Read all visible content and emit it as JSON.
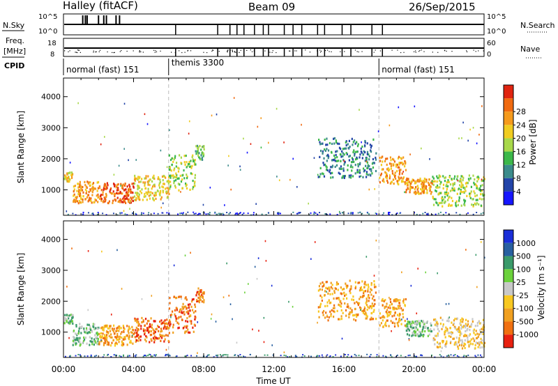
{
  "header": {
    "site": "Halley (fitACF)",
    "beam": "Beam 09",
    "date": "26/Sep/2015"
  },
  "status_panels": {
    "nsky": {
      "label": "N.Sky",
      "ticks": [
        "10^5",
        "10^0"
      ]
    },
    "nsearch": {
      "label": "N.Search",
      "ticks": [
        "10^5",
        "10^0"
      ]
    },
    "freq": {
      "label_top": "Freq.",
      "label_unit": "[MHz]",
      "ticks": [
        "18",
        "8"
      ]
    },
    "nave": {
      "label": "Nave",
      "ticks": [
        "60",
        "0"
      ]
    },
    "cpid": {
      "label": "CPID",
      "segments": [
        {
          "name": "normal (fast) 151",
          "start_hour": 0,
          "end_hour": 6
        },
        {
          "name": "themis 3300",
          "start_hour": 6,
          "end_hour": 18
        },
        {
          "name": "normal (fast) 151",
          "start_hour": 18,
          "end_hour": 24
        }
      ]
    }
  },
  "chart_data": [
    {
      "type": "heatmap",
      "title": "",
      "xlabel": "Time UT",
      "ylabel": "Slant Range [km]",
      "xlim": [
        0,
        24
      ],
      "ylim": [
        180,
        4600
      ],
      "x_ticks": [
        "00:00",
        "04:00",
        "08:00",
        "12:00",
        "16:00",
        "20:00",
        "00:00"
      ],
      "y_ticks": [
        "1000",
        "2000",
        "3000",
        "4000"
      ],
      "colorbar": {
        "label": "Power [dB]",
        "ticks": [
          "4",
          "8",
          "12",
          "16",
          "20",
          "24",
          "28"
        ],
        "colors": [
          "#1616ff",
          "#2244a8",
          "#3b8b8b",
          "#3cb84a",
          "#a8d84a",
          "#f0cc20",
          "#f59a1c",
          "#f06a10",
          "#e02410"
        ]
      },
      "dashed_lines_hour": [
        6,
        18
      ],
      "bands": [
        {
          "t0": 0.0,
          "t1": 0.5,
          "r0": 1300,
          "r1": 1600,
          "level": 5
        },
        {
          "t0": 0.5,
          "t1": 2.0,
          "r0": 600,
          "r1": 1300,
          "level": 6
        },
        {
          "t0": 2.0,
          "t1": 4.0,
          "r0": 600,
          "r1": 1250,
          "level": 7
        },
        {
          "t0": 4.0,
          "t1": 6.0,
          "r0": 700,
          "r1": 1500,
          "level": 5
        },
        {
          "t0": 6.0,
          "t1": 7.5,
          "r0": 1000,
          "r1": 2200,
          "level": 4
        },
        {
          "t0": 7.5,
          "t1": 8.0,
          "r0": 2000,
          "r1": 2450,
          "level": 3
        },
        {
          "t0": 14.5,
          "t1": 17.8,
          "r0": 1400,
          "r1": 2700,
          "level": 2
        },
        {
          "t0": 18.0,
          "t1": 19.5,
          "r0": 1200,
          "r1": 2100,
          "level": 6
        },
        {
          "t0": 19.5,
          "t1": 21.0,
          "r0": 900,
          "r1": 1400,
          "level": 6
        },
        {
          "t0": 21.0,
          "t1": 24.0,
          "r0": 500,
          "r1": 1500,
          "level": 4
        }
      ]
    },
    {
      "type": "heatmap",
      "title": "",
      "xlabel": "Time UT",
      "ylabel": "Slant Range [km]",
      "xlim": [
        0,
        24
      ],
      "ylim": [
        180,
        4600
      ],
      "x_ticks": [
        "00:00",
        "04:00",
        "08:00",
        "12:00",
        "16:00",
        "20:00",
        "00:00"
      ],
      "y_ticks": [
        "1000",
        "2000",
        "3000",
        "4000"
      ],
      "colorbar": {
        "label": "Velocity [m s⁻¹]",
        "ticks": [
          "1000",
          "500",
          "100",
          "25",
          "-25",
          "-100",
          "-500",
          "-1000"
        ],
        "colors": [
          "#1a2ed8",
          "#2860a0",
          "#3a9a6a",
          "#6cd23c",
          "#c8c8c8",
          "#f8c820",
          "#f0a020",
          "#f07010",
          "#e82010"
        ]
      },
      "dashed_lines_hour": [
        6,
        18
      ],
      "bands": [
        {
          "t0": 0.0,
          "t1": 0.5,
          "r0": 1300,
          "r1": 1600,
          "level": 3
        },
        {
          "t0": 0.5,
          "t1": 2.0,
          "r0": 600,
          "r1": 1300,
          "level": 3
        },
        {
          "t0": 2.0,
          "t1": 4.0,
          "r0": 600,
          "r1": 1250,
          "level": 6
        },
        {
          "t0": 4.0,
          "t1": 6.0,
          "r0": 700,
          "r1": 1500,
          "level": 7
        },
        {
          "t0": 6.0,
          "t1": 7.5,
          "r0": 1000,
          "r1": 2200,
          "level": 7
        },
        {
          "t0": 7.5,
          "t1": 8.0,
          "r0": 2000,
          "r1": 2450,
          "level": 7
        },
        {
          "t0": 14.5,
          "t1": 17.8,
          "r0": 1400,
          "r1": 2700,
          "level": 6
        },
        {
          "t0": 18.0,
          "t1": 19.5,
          "r0": 1200,
          "r1": 2100,
          "level": 6
        },
        {
          "t0": 19.5,
          "t1": 21.0,
          "r0": 900,
          "r1": 1400,
          "level": 3
        },
        {
          "t0": 21.0,
          "t1": 24.0,
          "r0": 500,
          "r1": 1500,
          "level": 5
        }
      ]
    }
  ]
}
